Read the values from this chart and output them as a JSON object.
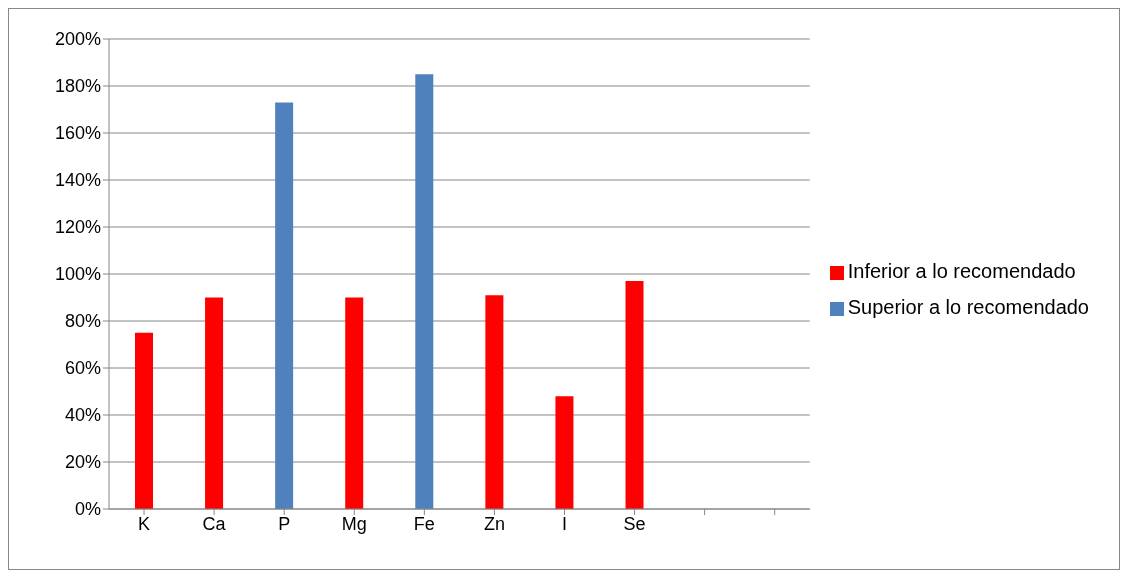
{
  "chart_data": {
    "type": "bar",
    "categories": [
      "K",
      "Ca",
      "P",
      "Mg",
      "Fe",
      "Zn",
      "I",
      "Se",
      null,
      null
    ],
    "series": [
      {
        "name": "Superior a lo recomendado",
        "color": "#4f81bd",
        "values": [
          null,
          null,
          173,
          null,
          185,
          null,
          null,
          null,
          null,
          null
        ]
      },
      {
        "name": "Inferior a lo recomendado",
        "color": "#ff0000",
        "values": [
          75,
          90,
          null,
          90,
          null,
          91,
          48,
          97,
          null,
          null
        ]
      }
    ],
    "stacked": true,
    "ylim": [
      0,
      200
    ],
    "yticks": [
      {
        "value": 0,
        "label": "0%"
      },
      {
        "value": 20,
        "label": "20%"
      },
      {
        "value": 40,
        "label": "40%"
      },
      {
        "value": 60,
        "label": "60%"
      },
      {
        "value": 80,
        "label": "80%"
      },
      {
        "value": 100,
        "label": "100%"
      },
      {
        "value": 120,
        "label": "120%"
      },
      {
        "value": 140,
        "label": "140%"
      },
      {
        "value": 160,
        "label": "160%"
      },
      {
        "value": 180,
        "label": "180%"
      },
      {
        "value": 200,
        "label": "200%"
      }
    ],
    "grid": "y",
    "legend": "right"
  }
}
